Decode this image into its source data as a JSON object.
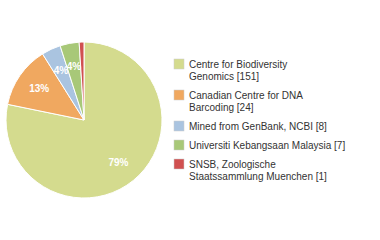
{
  "chart_data": {
    "type": "pie",
    "categories": [
      "Centre for Biodiversity\nGenomics [151]",
      "Canadian Centre for DNA\nBarcoding [24]",
      "Mined from GenBank, NCBI [8]",
      "Universiti Kebangsaan Malaysia [7]",
      "SNSB, Zoologische\nStaatssammlung Muenchen [1]"
    ],
    "values": [
      79,
      13,
      4,
      4,
      1
    ],
    "value_labels": [
      "79%",
      "13%",
      "4%",
      "4%",
      null
    ],
    "colors": [
      "#d4db8e",
      "#f0a860",
      "#aac4e0",
      "#a8c878",
      "#d05050"
    ],
    "data_labels": true,
    "legend": "right"
  }
}
